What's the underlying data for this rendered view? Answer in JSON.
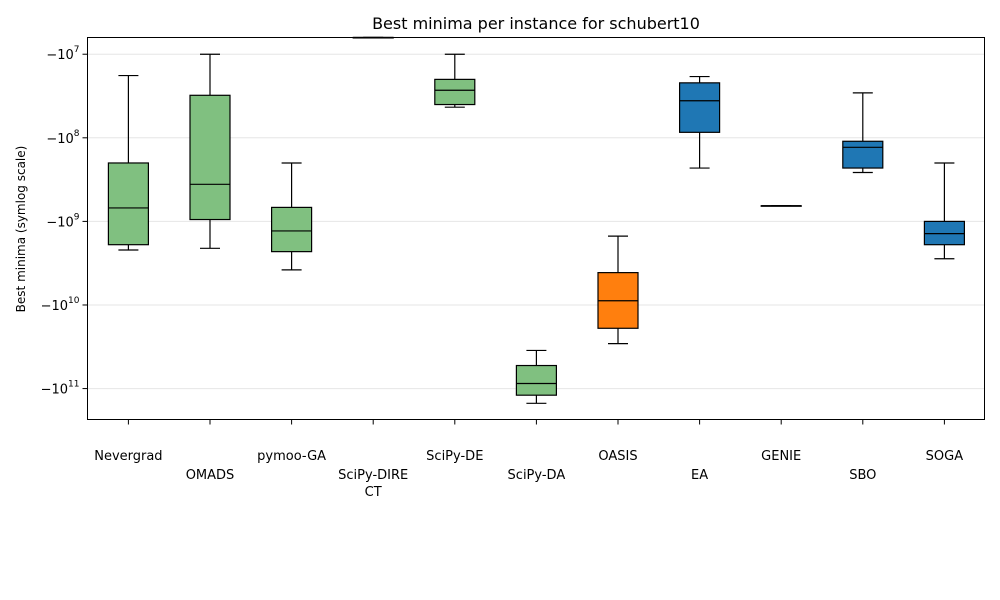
{
  "chart_data": {
    "type": "box",
    "title": "Best minima per instance for schubert10",
    "ylabel": "Best minima (symlog scale)",
    "yscale": "symlog",
    "ylim_log10_abs": [
      6.8,
      11.37
    ],
    "y_ticks": [
      {
        "label": "−10",
        "exp": "7",
        "value": -10000000
      },
      {
        "label": "−10",
        "exp": "8",
        "value": -100000000
      },
      {
        "label": "−10",
        "exp": "9",
        "value": -1000000000
      },
      {
        "label": "−10",
        "exp": "10",
        "value": -10000000000
      },
      {
        "label": "−10",
        "exp": "11",
        "value": -100000000000
      }
    ],
    "grid": "horizontal",
    "colors": {
      "green": "#80c080",
      "orange": "#ff7f0e",
      "blue": "#1f77b4"
    },
    "categories": [
      {
        "name": "Nevergrad",
        "lines": [
          "Nevergrad"
        ],
        "color": "green",
        "whisker_high": -18000000.0,
        "q3": -200000000.0,
        "median": -690000000.0,
        "q1": -1900000000.0,
        "whisker_low": -2200000000.0
      },
      {
        "name": "OMADS",
        "lines": [
          "OMADS"
        ],
        "color": "green",
        "whisker_high": -10000000.0,
        "q3": -31000000.0,
        "median": -360000000.0,
        "q1": -950000000.0,
        "whisker_low": -2100000000.0
      },
      {
        "name": "pymoo-GA",
        "lines": [
          "pymoo-GA"
        ],
        "color": "green",
        "whisker_high": -200000000.0,
        "q3": -680000000.0,
        "median": -1300000000.0,
        "q1": -2300000000.0,
        "whisker_low": -3800000000.0
      },
      {
        "name": "SciPy-DIRECT",
        "lines": [
          "SciPy-DIRE",
          "CT"
        ],
        "color": "green",
        "whisker_high": -6300000.0,
        "q3": -6300000.0,
        "median": -6300000.0,
        "q1": -6300000.0,
        "whisker_low": -6300000.0
      },
      {
        "name": "SciPy-DE",
        "lines": [
          "SciPy-DE"
        ],
        "color": "green",
        "whisker_high": -10000000.0,
        "q3": -20000000.0,
        "median": -27000000.0,
        "q1": -40000000.0,
        "whisker_low": -43000000.0
      },
      {
        "name": "SciPy-DA",
        "lines": [
          "SciPy-DA"
        ],
        "color": "green",
        "whisker_high": -35000000000.0,
        "q3": -53000000000.0,
        "median": -87000000000.0,
        "q1": -120000000000.0,
        "whisker_low": -150000000000.0
      },
      {
        "name": "OASIS",
        "lines": [
          "OASIS"
        ],
        "color": "orange",
        "whisker_high": -1500000000.0,
        "q3": -4100000000.0,
        "median": -8900000000.0,
        "q1": -19000000000.0,
        "whisker_low": -29000000000.0
      },
      {
        "name": "EA",
        "lines": [
          "EA"
        ],
        "color": "blue",
        "whisker_high": -18500000.0,
        "q3": -22000000.0,
        "median": -36000000.0,
        "q1": -86000000.0,
        "whisker_low": -230000000.0
      },
      {
        "name": "GENIE",
        "lines": [
          "GENIE"
        ],
        "color": "blue",
        "whisker_high": -650000000.0,
        "q3": -650000000.0,
        "median": -650000000.0,
        "q1": -650000000.0,
        "whisker_low": -650000000.0
      },
      {
        "name": "SBO",
        "lines": [
          "SBO"
        ],
        "color": "blue",
        "whisker_high": -29000000.0,
        "q3": -110000000.0,
        "median": -130000000.0,
        "q1": -230000000.0,
        "whisker_low": -260000000.0
      },
      {
        "name": "SOGA",
        "lines": [
          "SOGA"
        ],
        "color": "blue",
        "whisker_high": -200000000.0,
        "q3": -1000000000.0,
        "median": -1400000000.0,
        "q1": -1900000000.0,
        "whisker_low": -2800000000.0
      }
    ]
  }
}
